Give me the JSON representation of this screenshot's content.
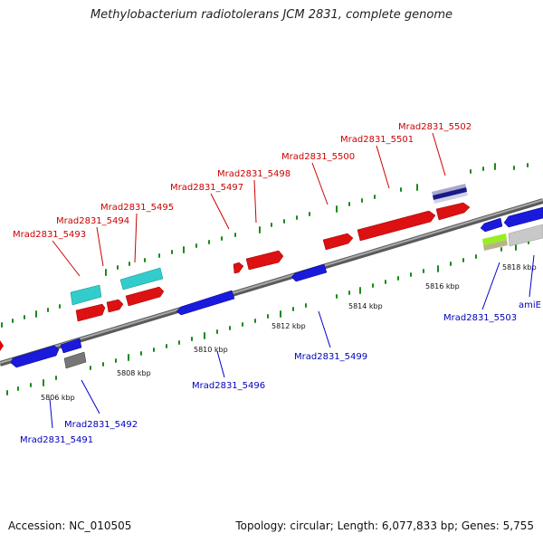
{
  "title": "Methylobacterium radiotolerans JCM 2831, complete genome",
  "footer": {
    "accession": "Accession: NC_010505",
    "stats": "Topology: circular; Length: 6,077,833 bp; Genes: 5,755"
  },
  "colors": {
    "forward_strand": "#ff0000",
    "reverse_strand": "#0000cc",
    "backbone": "#888888",
    "tick_marks": "#1a8a1a",
    "cyan_feature": "#33cccc",
    "gray_feature": "#777777"
  },
  "scale_labels": [
    "5806 kbp",
    "5808 kbp",
    "5810 kbp",
    "5812 kbp",
    "5814 kbp",
    "5816 kbp",
    "5818 kbp"
  ],
  "forward_genes": [
    "Mrad2831_5493",
    "Mrad2831_5494",
    "Mrad2831_5495",
    "Mrad2831_5497",
    "Mrad2831_5498",
    "Mrad2831_5500",
    "Mrad2831_5501",
    "Mrad2831_5502"
  ],
  "reverse_genes": [
    "Mrad2831_5491",
    "Mrad2831_5492",
    "Mrad2831_5496",
    "Mrad2831_5499",
    "Mrad2831_5503",
    "amiE"
  ]
}
